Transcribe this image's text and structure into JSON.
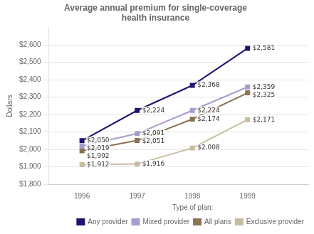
{
  "chart_data": {
    "type": "line",
    "title": "Average annual premium for single-coverage\nhealth insurance",
    "ylabel": "Dollars",
    "x": [
      1996,
      1997,
      1998,
      1999
    ],
    "xlim": [
      1995.4,
      2000.1
    ],
    "xticks": [
      1996,
      1997,
      1998,
      1999
    ],
    "ylim": [
      1800,
      2700
    ],
    "yticks": [
      {
        "value": 1800,
        "label": "$1,800"
      },
      {
        "value": 1900,
        "label": "$1,900"
      },
      {
        "value": 2000,
        "label": "$2,000"
      },
      {
        "value": 2100,
        "label": "$2,100"
      },
      {
        "value": 2200,
        "label": "$2,200"
      },
      {
        "value": 2300,
        "label": "$2,300"
      },
      {
        "value": 2400,
        "label": "$2,400"
      },
      {
        "value": 2500,
        "label": "$2,500"
      },
      {
        "value": 2600,
        "label": "$2,600"
      }
    ],
    "grid": "y",
    "legend": "lower right",
    "legend_title": "Type of plan:",
    "data_labels": true,
    "series": [
      {
        "name": "Any provider",
        "color": "#231070",
        "marker": "square",
        "values": [
          2050,
          2224,
          2368,
          2581
        ],
        "value_labels": [
          "$2,050",
          "$2,224",
          "$2,368",
          "$2,581"
        ]
      },
      {
        "name": "Mixed provider",
        "color": "#a89cce",
        "marker": "square",
        "values": [
          2019,
          2091,
          2224,
          2359
        ],
        "value_labels": [
          "$2,019",
          "$2,091",
          "$2,224",
          "$2,359"
        ]
      },
      {
        "name": "All plans",
        "color": "#8b7355",
        "marker": "square",
        "values": [
          1992,
          2051,
          2174,
          2325
        ],
        "value_labels": [
          "$1,992",
          "$2,051",
          "$2,174",
          "$2,325"
        ]
      },
      {
        "name": "Exclusive provider",
        "color": "#c8bda0",
        "marker": "square",
        "values": [
          1912,
          1916,
          2008,
          2171
        ],
        "value_labels": [
          "$1,912",
          "$1,916",
          "$2,008",
          "$2,171"
        ]
      }
    ]
  }
}
